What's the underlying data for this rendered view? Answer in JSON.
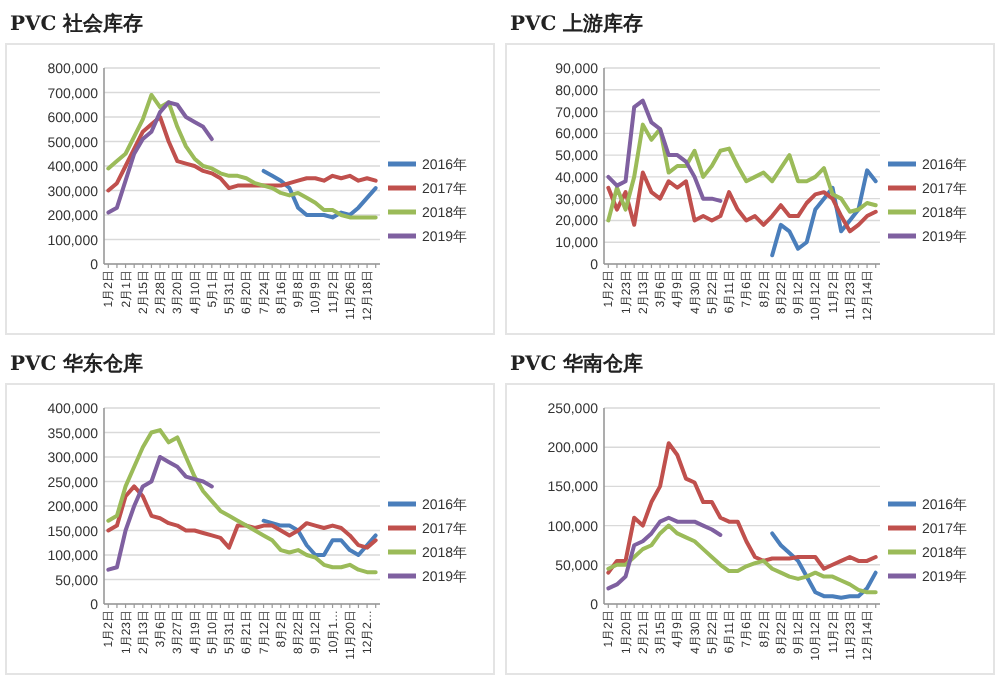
{
  "chart_data": [
    {
      "type": "line",
      "title": "PVC 社会库存",
      "grid": "y",
      "legend": "right",
      "ylim": [
        0,
        800000
      ],
      "yticks": [
        {
          "value": 0,
          "label": "0"
        },
        {
          "value": 100000,
          "label": "100,000"
        },
        {
          "value": 200000,
          "label": "200,000"
        },
        {
          "value": 300000,
          "label": "300,000"
        },
        {
          "value": 400000,
          "label": "400,000"
        },
        {
          "value": 500000,
          "label": "500,000"
        },
        {
          "value": 600000,
          "label": "600,000"
        },
        {
          "value": 700000,
          "label": "700,000"
        },
        {
          "value": 800000,
          "label": "800,000"
        }
      ],
      "categories": [
        "1月2日",
        null,
        "2月1日",
        null,
        "2月15日",
        null,
        "2月28日",
        null,
        "3月20日",
        null,
        "4月10日",
        null,
        "5月1日",
        null,
        "5月31日",
        null,
        "6月20日",
        null,
        "7月24日",
        null,
        "8月16日",
        null,
        "9月8日",
        null,
        "10月9日",
        null,
        "11月2日",
        null,
        "11月26日",
        null,
        "12月18日",
        null
      ],
      "series": [
        {
          "name": "2016年",
          "color": "#4a7ebb",
          "values": [
            null,
            null,
            null,
            null,
            null,
            null,
            null,
            null,
            null,
            null,
            null,
            null,
            null,
            null,
            null,
            null,
            null,
            null,
            380000,
            360000,
            340000,
            310000,
            230000,
            200000,
            200000,
            200000,
            190000,
            210000,
            200000,
            230000,
            270000,
            310000
          ]
        },
        {
          "name": "2017年",
          "color": "#c0504d",
          "values": [
            300000,
            330000,
            400000,
            470000,
            540000,
            570000,
            600000,
            500000,
            420000,
            410000,
            400000,
            380000,
            370000,
            350000,
            310000,
            320000,
            320000,
            320000,
            320000,
            320000,
            320000,
            330000,
            340000,
            350000,
            350000,
            340000,
            360000,
            350000,
            360000,
            340000,
            350000,
            340000
          ]
        },
        {
          "name": "2018年",
          "color": "#9bbb59",
          "values": [
            390000,
            420000,
            450000,
            520000,
            590000,
            690000,
            640000,
            660000,
            560000,
            480000,
            430000,
            400000,
            390000,
            370000,
            360000,
            360000,
            350000,
            330000,
            320000,
            310000,
            290000,
            280000,
            290000,
            270000,
            250000,
            220000,
            220000,
            200000,
            190000,
            190000,
            190000,
            190000
          ]
        },
        {
          "name": "2019年",
          "color": "#7f60a0",
          "values": [
            210000,
            230000,
            340000,
            450000,
            510000,
            540000,
            620000,
            660000,
            650000,
            600000,
            580000,
            560000,
            510000,
            null,
            null,
            null,
            null,
            null,
            null,
            null,
            null,
            null,
            null,
            null,
            null,
            null,
            null,
            null,
            null,
            null,
            null,
            null
          ]
        }
      ]
    },
    {
      "type": "line",
      "title": "PVC 上游库存",
      "grid": "y",
      "legend": "right",
      "ylim": [
        0,
        90000
      ],
      "yticks": [
        {
          "value": 0,
          "label": "0"
        },
        {
          "value": 10000,
          "label": "10,000"
        },
        {
          "value": 20000,
          "label": "20,000"
        },
        {
          "value": 30000,
          "label": "30,000"
        },
        {
          "value": 40000,
          "label": "40,000"
        },
        {
          "value": 50000,
          "label": "50,000"
        },
        {
          "value": 60000,
          "label": "60,000"
        },
        {
          "value": 70000,
          "label": "70,000"
        },
        {
          "value": 80000,
          "label": "80,000"
        },
        {
          "value": 90000,
          "label": "90,000"
        }
      ],
      "categories": [
        "1月2日",
        null,
        "1月23日",
        null,
        "2月13日",
        null,
        "3月6日",
        null,
        "4月9日",
        null,
        "4月30日",
        null,
        "5月22日",
        null,
        "6月11日",
        null,
        "7月6日",
        null,
        "8月2日",
        null,
        "8月22日",
        null,
        "9月12日",
        null,
        "10月12日",
        null,
        "11月2日",
        null,
        "11月23日",
        null,
        "12月14日",
        null
      ],
      "series": [
        {
          "name": "2016年",
          "color": "#4a7ebb",
          "values": [
            null,
            null,
            null,
            null,
            null,
            null,
            null,
            null,
            null,
            null,
            null,
            null,
            null,
            null,
            null,
            null,
            null,
            null,
            null,
            4000,
            18000,
            15000,
            7000,
            10000,
            25000,
            30000,
            35000,
            15000,
            20000,
            25000,
            43000,
            38000
          ]
        },
        {
          "name": "2017年",
          "color": "#c0504d",
          "values": [
            35000,
            25000,
            33000,
            18000,
            42000,
            33000,
            30000,
            38000,
            35000,
            38000,
            20000,
            22000,
            20000,
            22000,
            33000,
            25000,
            20000,
            22000,
            18000,
            22000,
            27000,
            22000,
            22000,
            28000,
            32000,
            33000,
            30000,
            22000,
            15000,
            18000,
            22000,
            24000
          ]
        },
        {
          "name": "2018年",
          "color": "#9bbb59",
          "values": [
            20000,
            35000,
            25000,
            40000,
            64000,
            57000,
            62000,
            42000,
            45000,
            45000,
            52000,
            40000,
            45000,
            52000,
            53000,
            45000,
            38000,
            40000,
            42000,
            38000,
            44000,
            50000,
            38000,
            38000,
            40000,
            44000,
            32000,
            30000,
            24000,
            25000,
            28000,
            27000
          ]
        },
        {
          "name": "2019年",
          "color": "#7f60a0",
          "values": [
            40000,
            36000,
            38000,
            72000,
            75000,
            65000,
            62000,
            50000,
            50000,
            47000,
            40000,
            30000,
            30000,
            29000,
            null,
            null,
            null,
            null,
            null,
            null,
            null,
            null,
            null,
            null,
            null,
            null,
            null,
            null,
            null,
            null,
            null,
            null
          ]
        }
      ]
    },
    {
      "type": "line",
      "title": "PVC 华东仓库",
      "grid": "y",
      "legend": "right",
      "ylim": [
        0,
        400000
      ],
      "yticks": [
        {
          "value": 0,
          "label": "0"
        },
        {
          "value": 50000,
          "label": "50,000"
        },
        {
          "value": 100000,
          "label": "100,000"
        },
        {
          "value": 150000,
          "label": "150,000"
        },
        {
          "value": 200000,
          "label": "200,000"
        },
        {
          "value": 250000,
          "label": "250,000"
        },
        {
          "value": 300000,
          "label": "300,000"
        },
        {
          "value": 350000,
          "label": "350,000"
        },
        {
          "value": 400000,
          "label": "400,000"
        }
      ],
      "categories": [
        "1月2日",
        null,
        "1月23日",
        null,
        "2月13日",
        null,
        "3月6日",
        null,
        "3月27日",
        null,
        "4月19日",
        null,
        "5月10日",
        null,
        "5月31日",
        null,
        "6月21日",
        null,
        "7月12日",
        null,
        "8月2日",
        null,
        "8月22日",
        null,
        "9月12日",
        null,
        "10月1…",
        null,
        "11月20日",
        null,
        "12月2…",
        null
      ],
      "series": [
        {
          "name": "2016年",
          "color": "#4a7ebb",
          "values": [
            null,
            null,
            null,
            null,
            null,
            null,
            null,
            null,
            null,
            null,
            null,
            null,
            null,
            null,
            null,
            null,
            null,
            null,
            170000,
            165000,
            160000,
            160000,
            150000,
            120000,
            100000,
            100000,
            130000,
            130000,
            110000,
            100000,
            120000,
            140000
          ]
        },
        {
          "name": "2017年",
          "color": "#c0504d",
          "values": [
            150000,
            160000,
            220000,
            240000,
            220000,
            180000,
            175000,
            165000,
            160000,
            150000,
            150000,
            145000,
            140000,
            135000,
            115000,
            160000,
            160000,
            155000,
            160000,
            160000,
            150000,
            140000,
            150000,
            165000,
            160000,
            155000,
            160000,
            155000,
            140000,
            120000,
            115000,
            130000
          ]
        },
        {
          "name": "2018年",
          "color": "#9bbb59",
          "values": [
            170000,
            180000,
            240000,
            280000,
            320000,
            350000,
            355000,
            330000,
            340000,
            300000,
            260000,
            230000,
            210000,
            190000,
            180000,
            170000,
            160000,
            150000,
            140000,
            130000,
            110000,
            105000,
            110000,
            100000,
            95000,
            80000,
            75000,
            75000,
            80000,
            70000,
            65000,
            65000
          ]
        },
        {
          "name": "2019年",
          "color": "#7f60a0",
          "values": [
            70000,
            75000,
            150000,
            200000,
            240000,
            250000,
            300000,
            290000,
            280000,
            260000,
            255000,
            250000,
            240000,
            null,
            null,
            null,
            null,
            null,
            null,
            null,
            null,
            null,
            null,
            null,
            null,
            null,
            null,
            null,
            null,
            null,
            null,
            null
          ]
        }
      ]
    },
    {
      "type": "line",
      "title": "PVC 华南仓库",
      "grid": "y",
      "legend": "right",
      "ylim": [
        0,
        250000
      ],
      "yticks": [
        {
          "value": 0,
          "label": "0"
        },
        {
          "value": 50000,
          "label": "50,000"
        },
        {
          "value": 100000,
          "label": "100,000"
        },
        {
          "value": 150000,
          "label": "150,000"
        },
        {
          "value": 200000,
          "label": "200,000"
        },
        {
          "value": 250000,
          "label": "250,000"
        }
      ],
      "categories": [
        "1月2日",
        null,
        "1月20日",
        null,
        "2月21日",
        null,
        "3月15日",
        null,
        "4月9日",
        null,
        "4月30日",
        null,
        "5月22日",
        null,
        "6月11日",
        null,
        "7月6日",
        null,
        "8月2日",
        null,
        "8月22日",
        null,
        "9月12日",
        null,
        "10月12日",
        null,
        "11月2日",
        null,
        "11月23日",
        null,
        "12月14日",
        null
      ],
      "series": [
        {
          "name": "2016年",
          "color": "#4a7ebb",
          "values": [
            null,
            null,
            null,
            null,
            null,
            null,
            null,
            null,
            null,
            null,
            null,
            null,
            null,
            null,
            null,
            null,
            null,
            null,
            null,
            90000,
            75000,
            65000,
            55000,
            35000,
            15000,
            10000,
            10000,
            8000,
            10000,
            10000,
            20000,
            40000
          ]
        },
        {
          "name": "2017年",
          "color": "#c0504d",
          "values": [
            40000,
            55000,
            55000,
            110000,
            100000,
            130000,
            150000,
            205000,
            190000,
            160000,
            155000,
            130000,
            130000,
            110000,
            105000,
            105000,
            80000,
            60000,
            55000,
            58000,
            58000,
            58000,
            60000,
            60000,
            60000,
            45000,
            50000,
            55000,
            60000,
            55000,
            55000,
            60000
          ]
        },
        {
          "name": "2018年",
          "color": "#9bbb59",
          "values": [
            45000,
            50000,
            50000,
            60000,
            70000,
            75000,
            90000,
            100000,
            90000,
            85000,
            80000,
            70000,
            60000,
            50000,
            42000,
            42000,
            48000,
            52000,
            55000,
            45000,
            40000,
            35000,
            32000,
            35000,
            40000,
            35000,
            35000,
            30000,
            25000,
            18000,
            15000,
            15000
          ]
        },
        {
          "name": "2019年",
          "color": "#7f60a0",
          "values": [
            20000,
            25000,
            35000,
            75000,
            80000,
            90000,
            105000,
            110000,
            105000,
            105000,
            105000,
            100000,
            95000,
            88000,
            null,
            null,
            null,
            null,
            null,
            null,
            null,
            null,
            null,
            null,
            null,
            null,
            null,
            null,
            null,
            null,
            null,
            null
          ]
        }
      ]
    }
  ]
}
